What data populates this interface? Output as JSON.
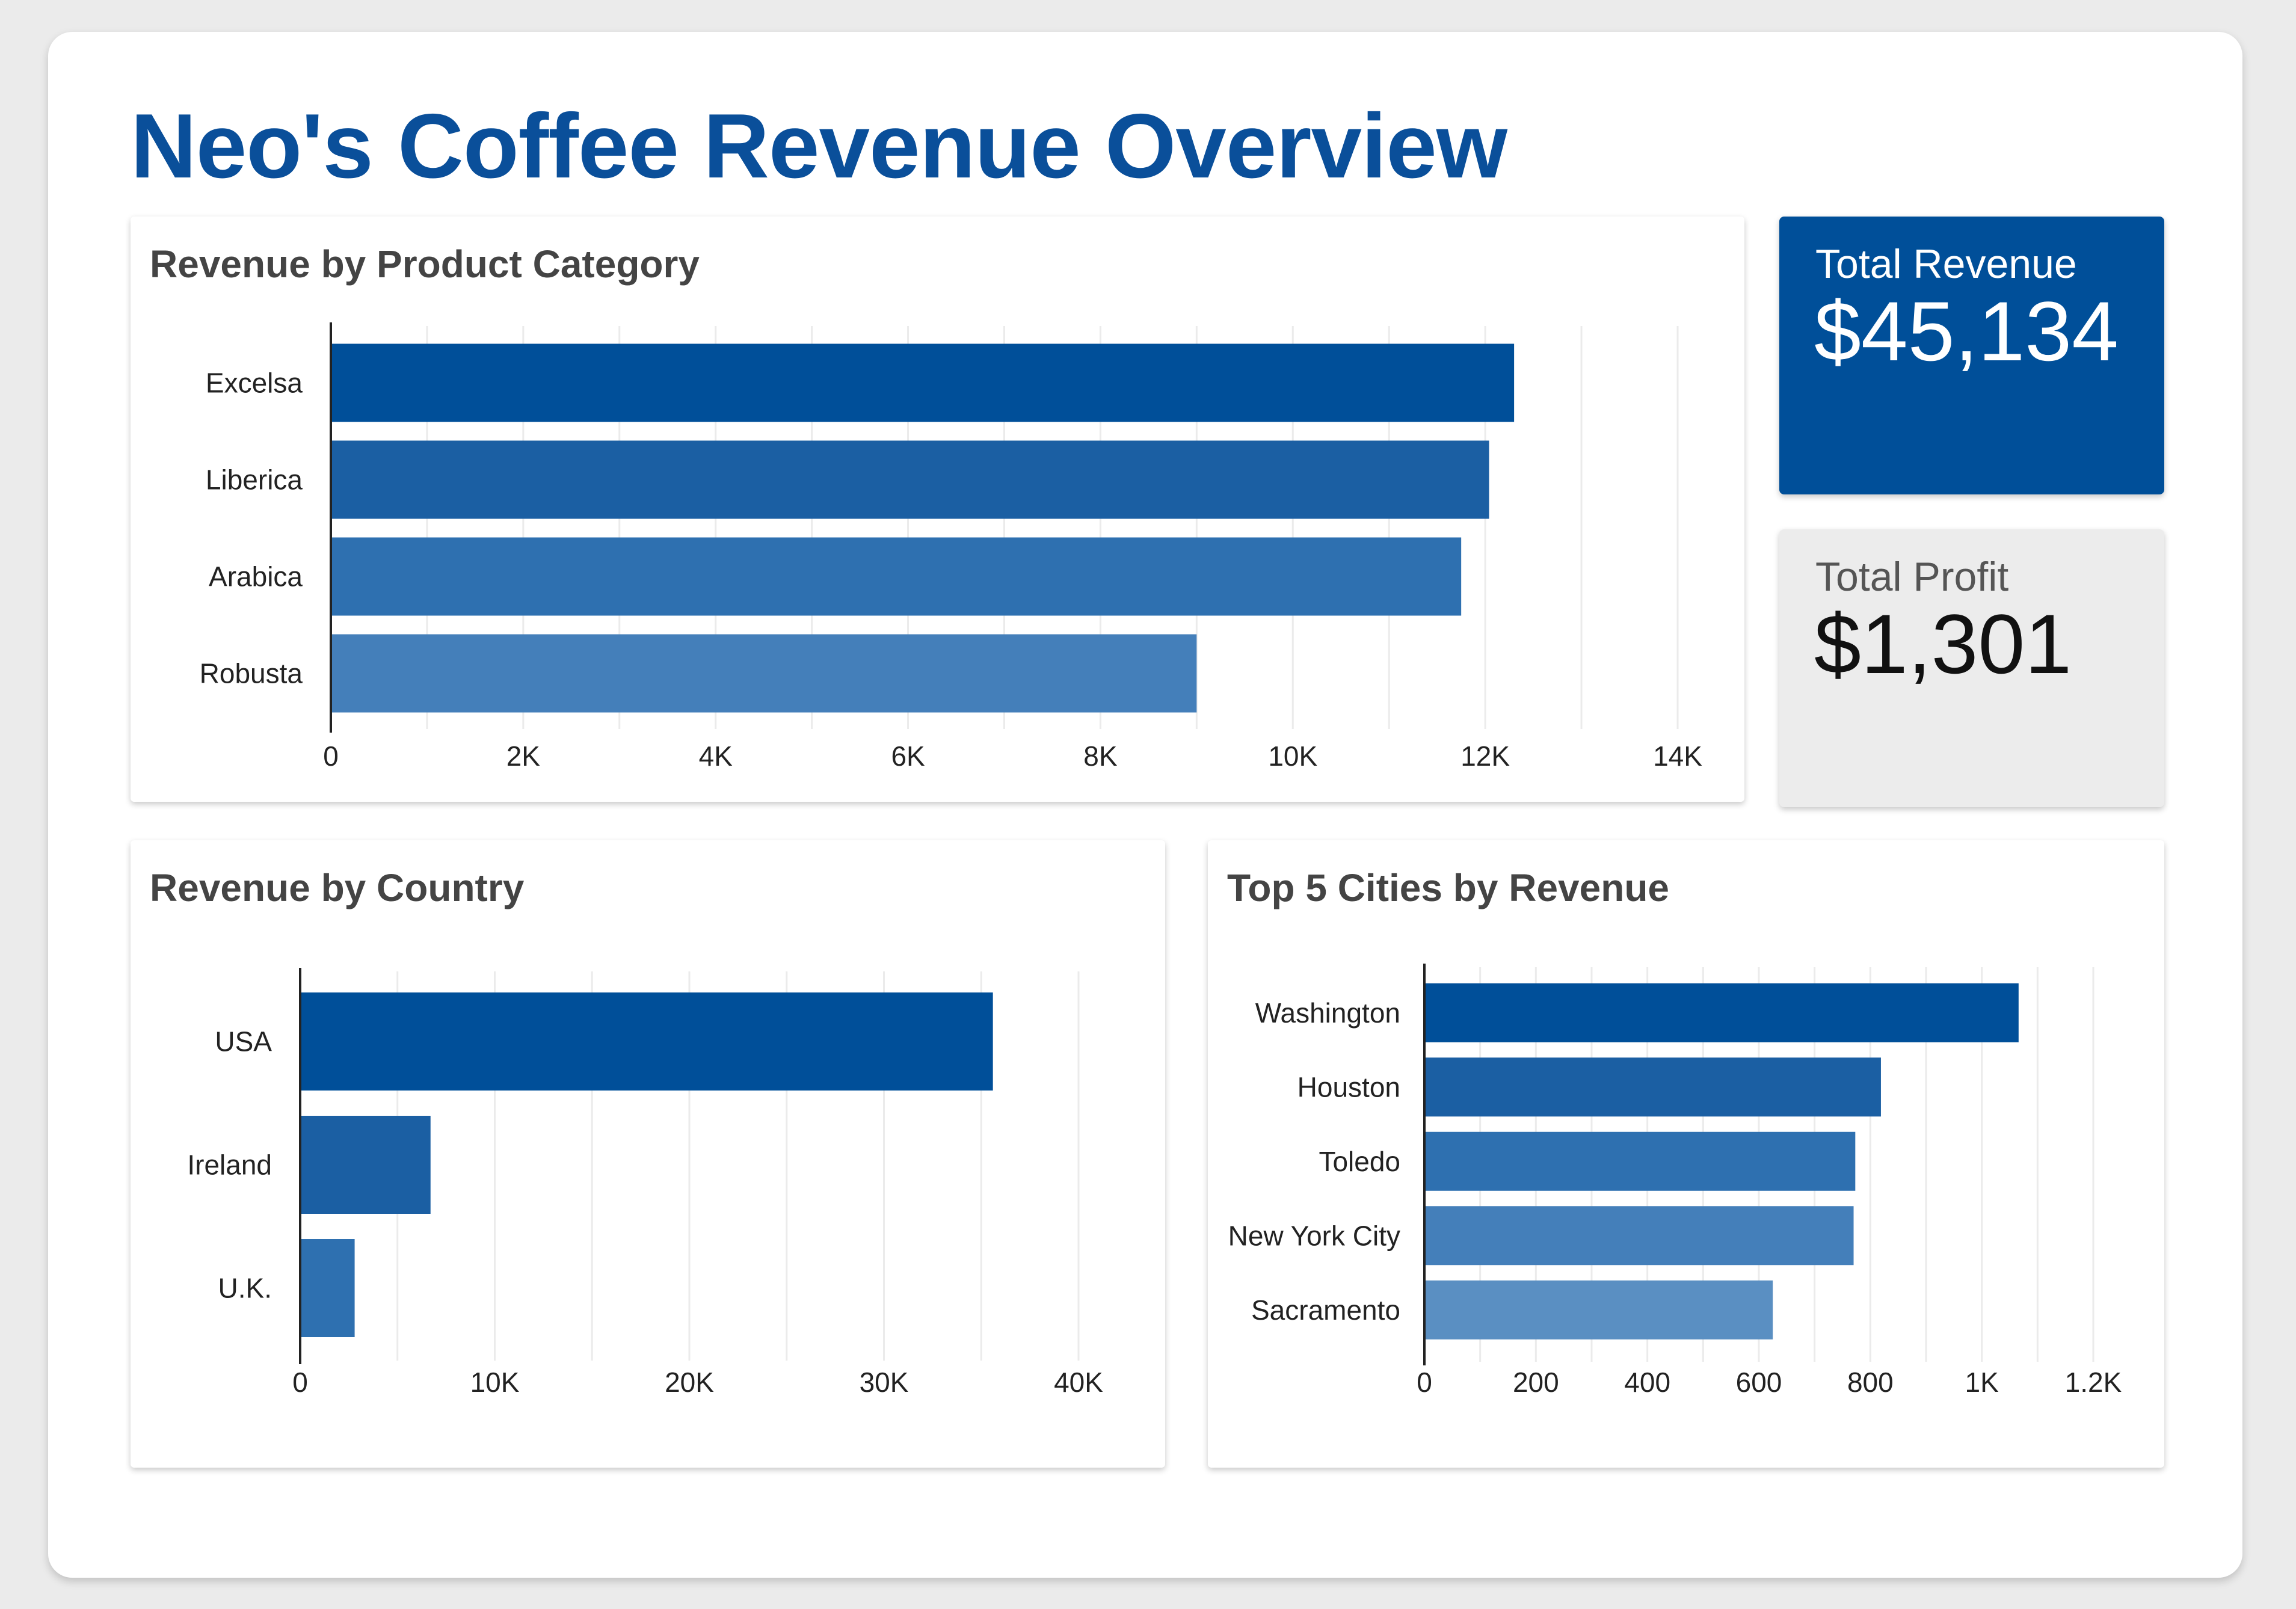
{
  "page": {
    "title": "Neo's Coffee Revenue Overview"
  },
  "kpis": {
    "revenue": {
      "label": "Total Revenue",
      "value": "$45,134"
    },
    "profit": {
      "label": "Total Profit",
      "value": "$1,301"
    }
  },
  "colors": {
    "title": "#0a4f9a",
    "bars": [
      "#004f99",
      "#1b5fa3",
      "#2e70b0",
      "#447fba",
      "#5a8fc2"
    ],
    "revenue_card": "#004f99",
    "profit_card": "#ececec"
  },
  "chart_data": [
    {
      "id": "category",
      "type": "bar",
      "orientation": "horizontal",
      "title": "Revenue by Product Category",
      "categories": [
        "Excelsa",
        "Liberica",
        "Arabica",
        "Robusta"
      ],
      "values": [
        12300,
        12040,
        11750,
        9000
      ],
      "xlim": [
        0,
        14000
      ],
      "ticks": [
        0,
        2000,
        4000,
        6000,
        8000,
        10000,
        12000,
        14000
      ],
      "tick_labels": [
        "0",
        "2K",
        "4K",
        "6K",
        "8K",
        "10K",
        "12K",
        "14K"
      ],
      "grid": true,
      "legend": "none"
    },
    {
      "id": "country",
      "type": "bar",
      "orientation": "horizontal",
      "title": "Revenue by Country",
      "categories": [
        "USA",
        "Ireland",
        "U.K."
      ],
      "values": [
        35600,
        6700,
        2800
      ],
      "xlim": [
        0,
        40000
      ],
      "ticks": [
        0,
        10000,
        20000,
        30000,
        40000
      ],
      "tick_labels": [
        "0",
        "10K",
        "20K",
        "30K",
        "40K"
      ],
      "grid": true,
      "legend": "none"
    },
    {
      "id": "cities",
      "type": "bar",
      "orientation": "horizontal",
      "title": "Top 5 Cities by Revenue",
      "categories": [
        "Washington",
        "Houston",
        "Toledo",
        "New York City",
        "Sacramento"
      ],
      "values": [
        1066,
        819,
        773,
        770,
        625
      ],
      "xlim": [
        0,
        1200
      ],
      "ticks": [
        0,
        200,
        400,
        600,
        800,
        1000,
        1200
      ],
      "tick_labels": [
        "0",
        "200",
        "400",
        "600",
        "800",
        "1K",
        "1.2K"
      ],
      "grid": true,
      "legend": "none"
    }
  ]
}
